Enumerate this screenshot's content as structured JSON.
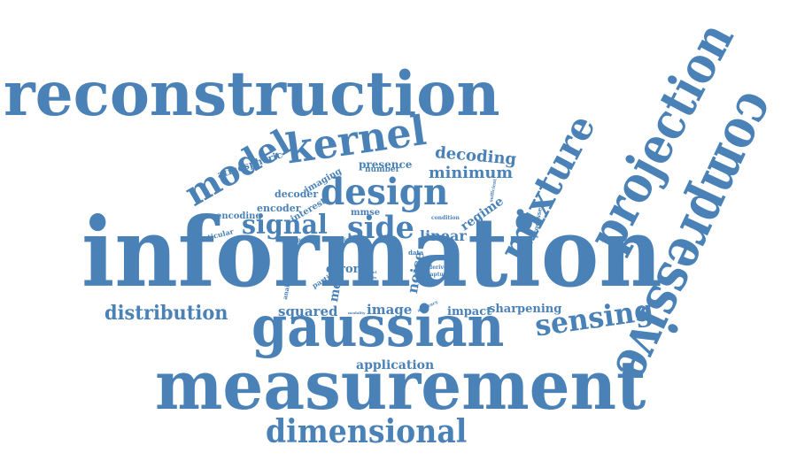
{
  "style": {
    "word_color": "#4a82b8",
    "background": "#ffffff"
  },
  "words": [
    "reconstruction",
    "information",
    "measurement",
    "compressive",
    "projection",
    "gaussian",
    "mixture",
    "dimensional",
    "kernel",
    "model",
    "design",
    "signal",
    "side",
    "distribution",
    "sensing",
    "decoding",
    "minimum",
    "squared",
    "image",
    "impact",
    "sharpening",
    "application",
    "linear",
    "regime",
    "noise",
    "error",
    "mean",
    "presence",
    "number",
    "decoder",
    "encoder",
    "interest",
    "mmse",
    "encoding",
    "atmospheric",
    "imaging",
    "particular",
    "hyperspectral",
    "numerical",
    "particle",
    "analysis",
    "processes",
    "condition",
    "sufficient",
    "data",
    "derive",
    "capture",
    "accuracy",
    "modality",
    "result",
    "space",
    "parallel",
    "weights"
  ]
}
